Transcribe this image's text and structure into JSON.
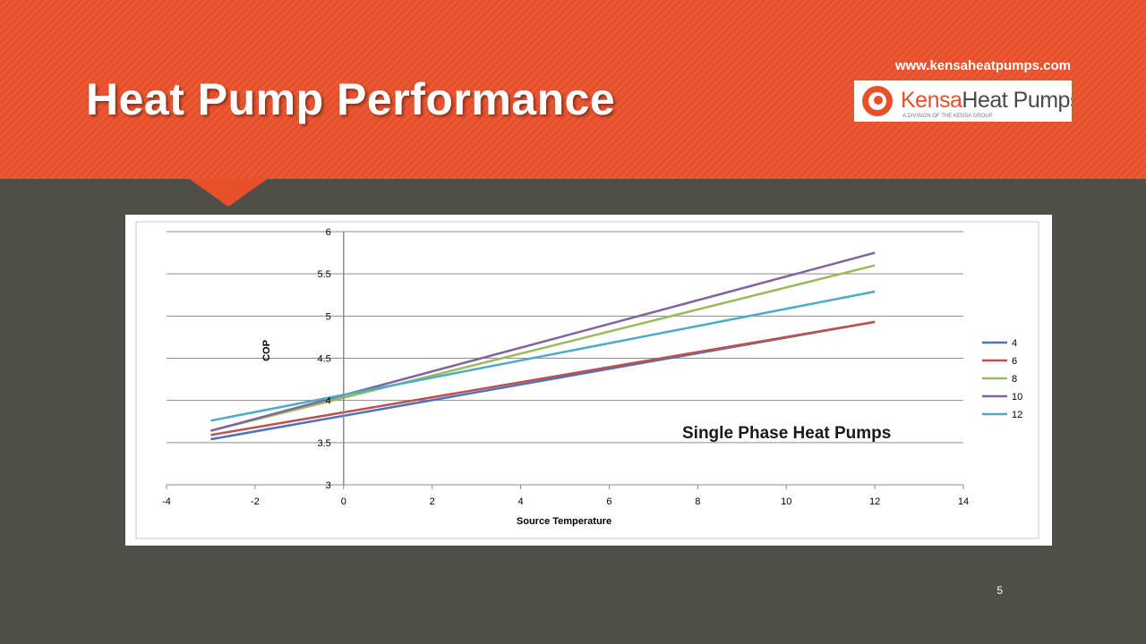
{
  "slide": {
    "title": "Heat Pump Performance",
    "url": "www.kensaheatpumps.com",
    "page_number": "5"
  },
  "logo": {
    "text_primary": "Kensa",
    "text_secondary": "Heat Pumps",
    "subtitle": "A DIVISION OF THE KENSA GROUP"
  },
  "colors": {
    "header": "#e8502b",
    "background": "#4f4f47"
  },
  "chart_data": {
    "type": "line",
    "xlabel": "Source Temperature",
    "ylabel": "COP",
    "annotation": "Single Phase Heat Pumps",
    "xlim": [
      -4,
      14
    ],
    "ylim": [
      3,
      6
    ],
    "xticks": [
      -4,
      -2,
      0,
      2,
      4,
      6,
      8,
      10,
      12,
      14
    ],
    "yticks": [
      3,
      3.5,
      4,
      4.5,
      5,
      5.5,
      6
    ],
    "grid": "horizontal",
    "legend_position": "right",
    "series": [
      {
        "name": "4",
        "color": "#4a72c4",
        "x": [
          -3,
          12
        ],
        "y": [
          3.54,
          4.93
        ]
      },
      {
        "name": "6",
        "color": "#c0504d",
        "x": [
          -3,
          12
        ],
        "y": [
          3.59,
          4.93
        ]
      },
      {
        "name": "8",
        "color": "#9bbb59",
        "x": [
          -3,
          12
        ],
        "y": [
          3.64,
          5.6
        ]
      },
      {
        "name": "10",
        "color": "#8064a2",
        "x": [
          -3,
          12
        ],
        "y": [
          3.64,
          5.75
        ]
      },
      {
        "name": "12",
        "color": "#4bacc6",
        "x": [
          -3,
          12
        ],
        "y": [
          3.76,
          5.29
        ]
      }
    ]
  }
}
